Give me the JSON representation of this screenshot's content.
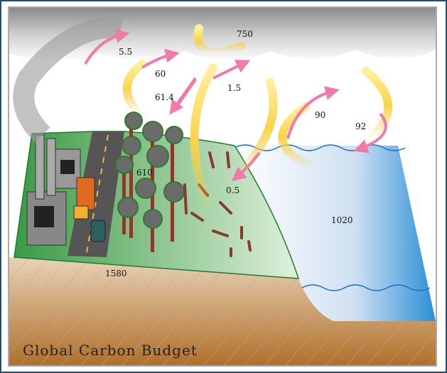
{
  "title": "Global Carbon Budget",
  "labels": {
    "atmosphere": 750,
    "fossil_emission": 5.5,
    "plant_respiration": 60,
    "photosynthesis": 61.4,
    "land_use_change": 1.5,
    "ocean_uptake": 92,
    "ocean_release": 90,
    "vegetation": 610,
    "decomposition": 0.5,
    "ocean": 1020,
    "soil": 1580
  }
}
